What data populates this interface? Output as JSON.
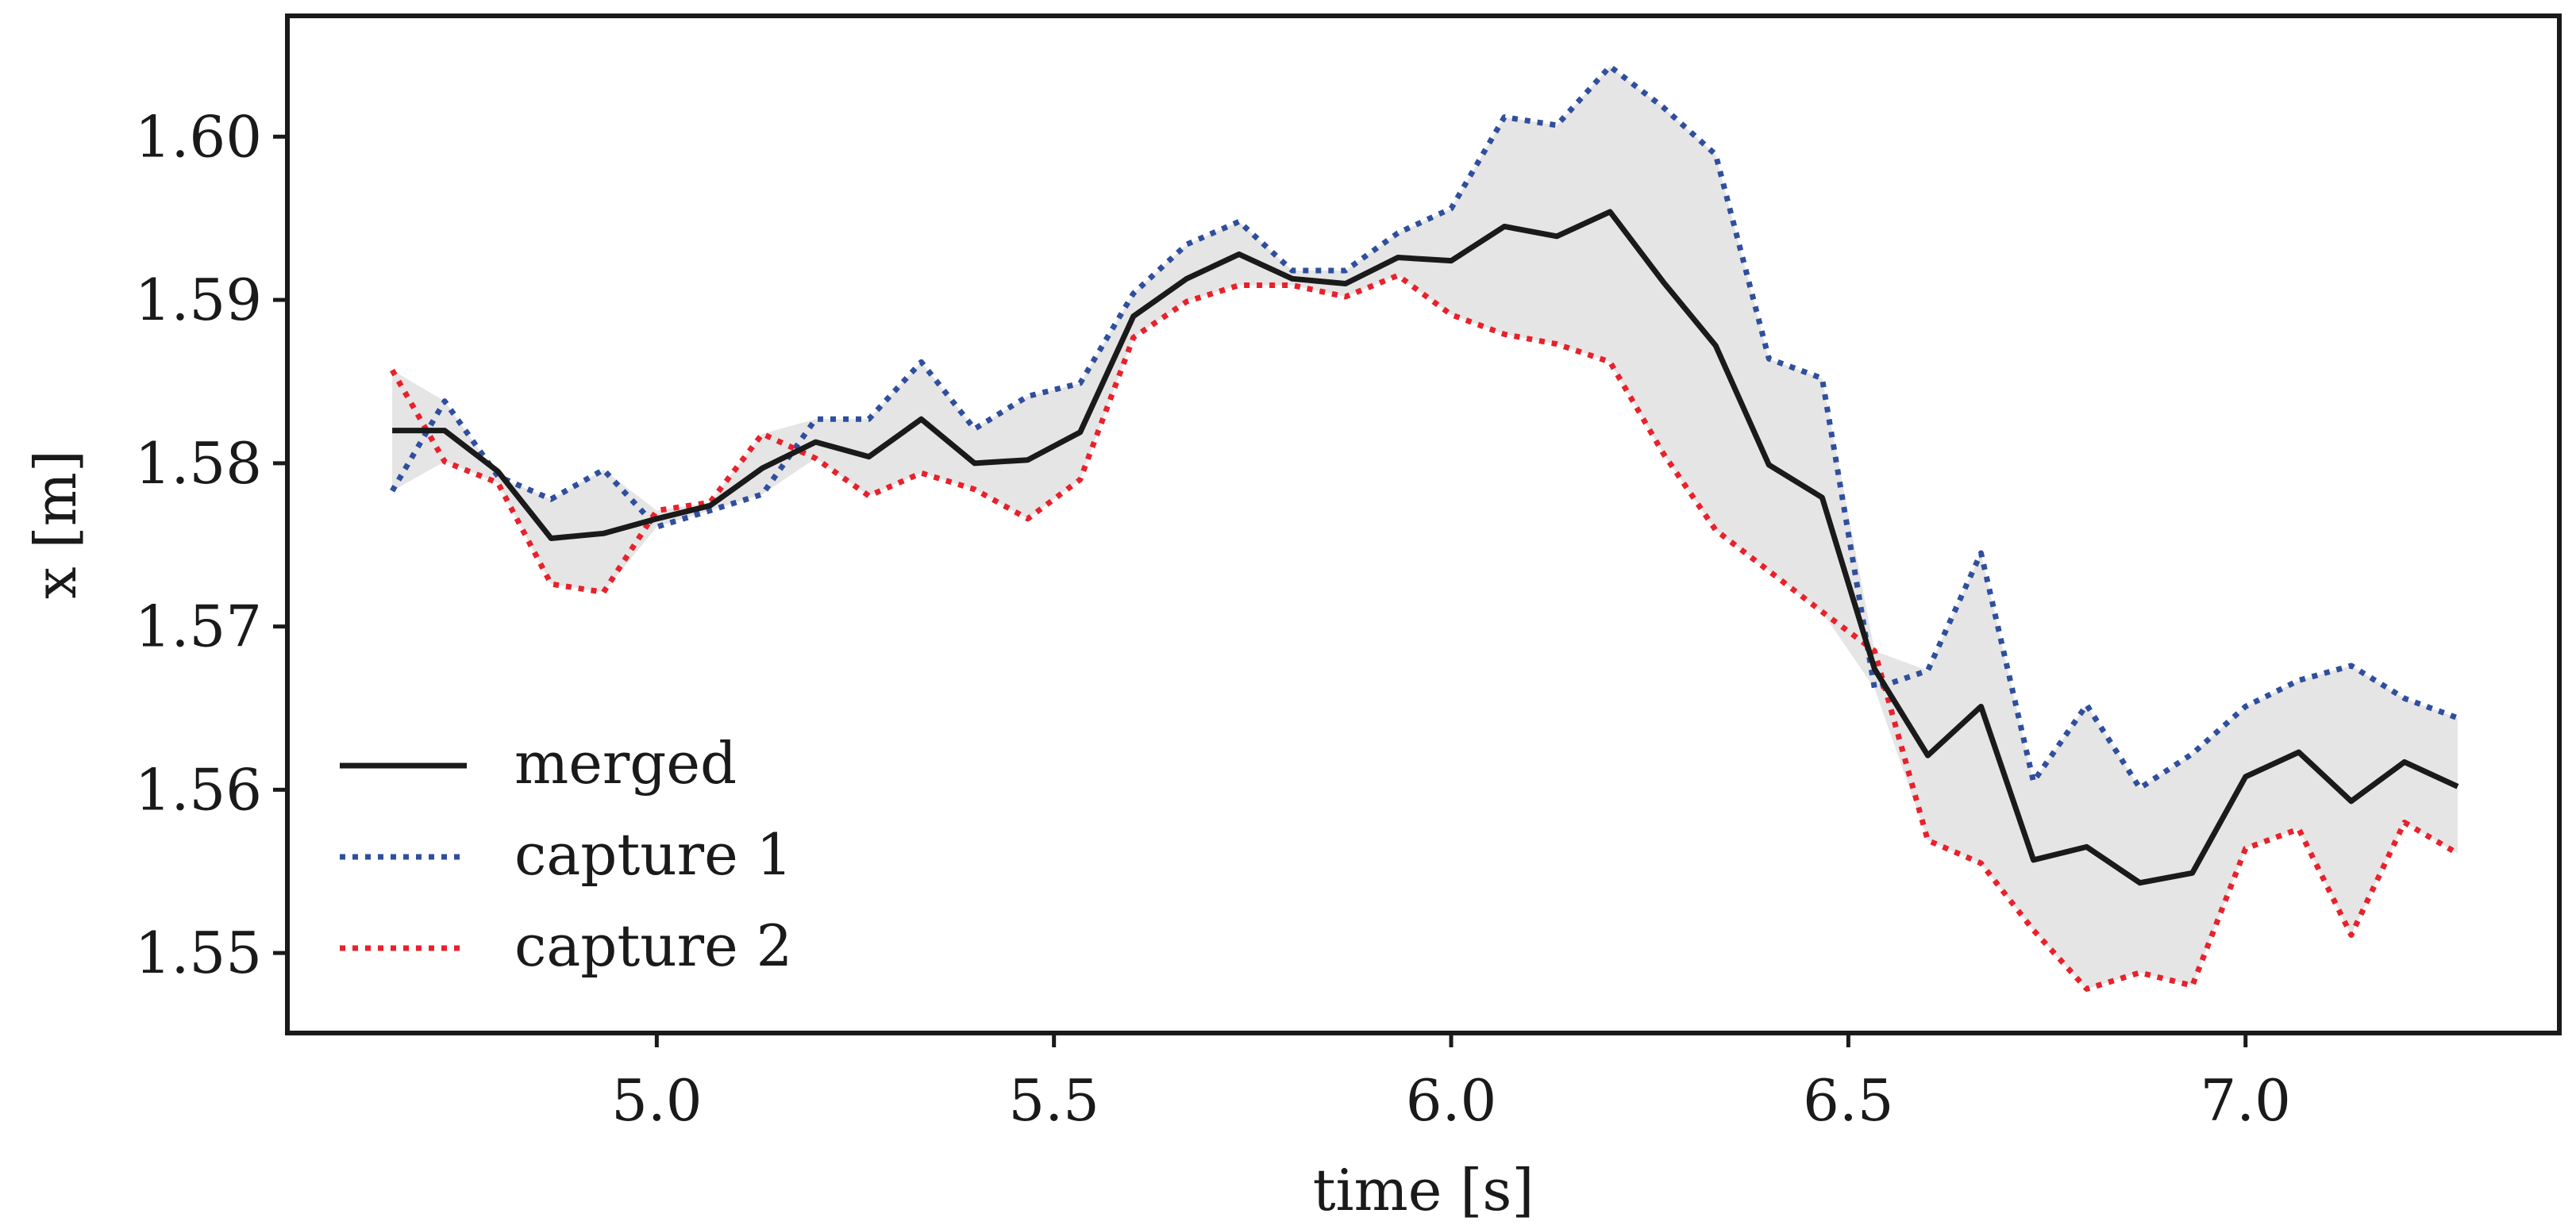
{
  "chart_data": {
    "type": "line",
    "title": "",
    "xlabel": "time [s]",
    "ylabel": "x [m]",
    "xlim": [
      4.535,
      7.395
    ],
    "ylim": [
      1.5451,
      1.6074
    ],
    "xticks": [
      5.0,
      5.5,
      6.0,
      6.5,
      7.0
    ],
    "xtick_labels": [
      "5.0",
      "5.5",
      "6.0",
      "6.5",
      "7.0"
    ],
    "yticks": [
      1.55,
      1.56,
      1.57,
      1.58,
      1.59,
      1.6
    ],
    "ytick_labels": [
      "1.55",
      "1.56",
      "1.57",
      "1.58",
      "1.59",
      "1.60"
    ],
    "grid": false,
    "legend_position": "lower-left",
    "x": [
      4.667,
      4.733,
      4.8,
      4.867,
      4.933,
      5.0,
      5.067,
      5.133,
      5.2,
      5.267,
      5.333,
      5.4,
      5.467,
      5.533,
      5.6,
      5.667,
      5.733,
      5.8,
      5.867,
      5.933,
      6.0,
      6.067,
      6.133,
      6.2,
      6.267,
      6.333,
      6.4,
      6.467,
      6.533,
      6.6,
      6.667,
      6.733,
      6.8,
      6.867,
      6.933,
      7.0,
      7.067,
      7.133,
      7.2,
      7.267
    ],
    "fill_between": {
      "between": [
        "capture 1",
        "capture 2"
      ],
      "color": "#e5e5e5"
    },
    "series": [
      {
        "name": "merged",
        "color": "#1a1a1a",
        "style": "solid",
        "values": [
          1.582,
          1.582,
          1.5795,
          1.5754,
          1.5757,
          1.5766,
          1.5774,
          1.5797,
          1.5813,
          1.5804,
          1.5827,
          1.58,
          1.5802,
          1.5819,
          1.589,
          1.5913,
          1.5928,
          1.5913,
          1.591,
          1.5926,
          1.5924,
          1.5945,
          1.5939,
          1.5954,
          1.5911,
          1.5872,
          1.5799,
          1.5779,
          1.5674,
          1.5621,
          1.5651,
          1.5557,
          1.5565,
          1.5543,
          1.5549,
          1.5608,
          1.5623,
          1.5593,
          1.5617,
          1.5602
        ]
      },
      {
        "name": "capture 1",
        "color": "#2f4f9e",
        "style": "dotted",
        "values": [
          1.5783,
          1.5838,
          1.5792,
          1.5778,
          1.5796,
          1.5761,
          1.5771,
          1.5781,
          1.5827,
          1.5827,
          1.5862,
          1.5821,
          1.5841,
          1.5849,
          1.5904,
          1.5934,
          1.5948,
          1.5918,
          1.5918,
          1.5941,
          1.5956,
          1.6012,
          1.6007,
          1.6043,
          1.6018,
          1.5989,
          1.5864,
          1.5852,
          1.5662,
          1.5673,
          1.5745,
          1.5605,
          1.5652,
          1.5601,
          1.5622,
          1.5651,
          1.5667,
          1.5676,
          1.5656,
          1.5644
        ]
      },
      {
        "name": "capture 2",
        "color": "#e8212b",
        "style": "dotted",
        "values": [
          1.5857,
          1.5801,
          1.5788,
          1.5726,
          1.5721,
          1.5771,
          1.5776,
          1.5818,
          1.5803,
          1.578,
          1.5794,
          1.5784,
          1.5766,
          1.579,
          1.5877,
          1.5899,
          1.5909,
          1.5909,
          1.5902,
          1.5915,
          1.5891,
          1.5879,
          1.5873,
          1.5862,
          1.5806,
          1.5759,
          1.5734,
          1.5709,
          1.5685,
          1.5569,
          1.5555,
          1.5514,
          1.5478,
          1.5488,
          1.548,
          1.5564,
          1.5576,
          1.5511,
          1.558,
          1.5561
        ]
      }
    ]
  }
}
